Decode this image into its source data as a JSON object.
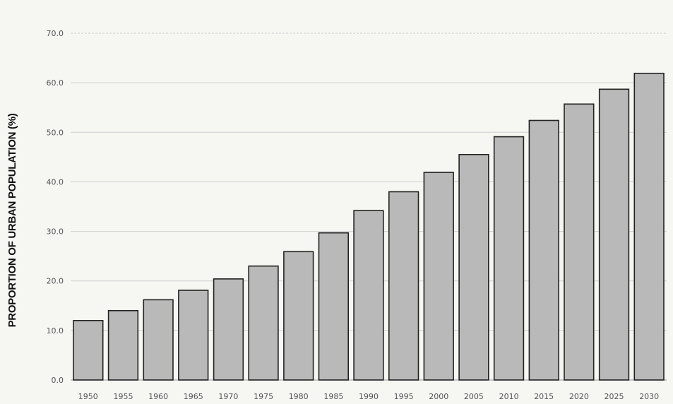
{
  "chart_data": {
    "type": "bar",
    "ylabel": "PROPORTION OF URBAN POPULATION (%)",
    "xlabel": "",
    "ylim": [
      0,
      70
    ],
    "yticks": [
      "0.0",
      "10.0",
      "20.0",
      "30.0",
      "40.0",
      "50.0",
      "60.0",
      "70.0"
    ],
    "categories": [
      "1950",
      "1955",
      "1960",
      "1965",
      "1970",
      "1975",
      "1980",
      "1985",
      "1990",
      "1995",
      "2000",
      "2005",
      "2010",
      "2015",
      "2020",
      "2025",
      "2030"
    ],
    "values": [
      12.0,
      14.0,
      16.2,
      18.1,
      20.4,
      23.0,
      25.9,
      29.7,
      34.2,
      38.0,
      41.9,
      45.5,
      49.1,
      52.4,
      55.7,
      58.7,
      61.9
    ],
    "bar_fill": "#b9b9b9",
    "bar_stroke": "#222222",
    "gridline_color": "#cfcfcf",
    "grid": true,
    "legend": "none"
  }
}
